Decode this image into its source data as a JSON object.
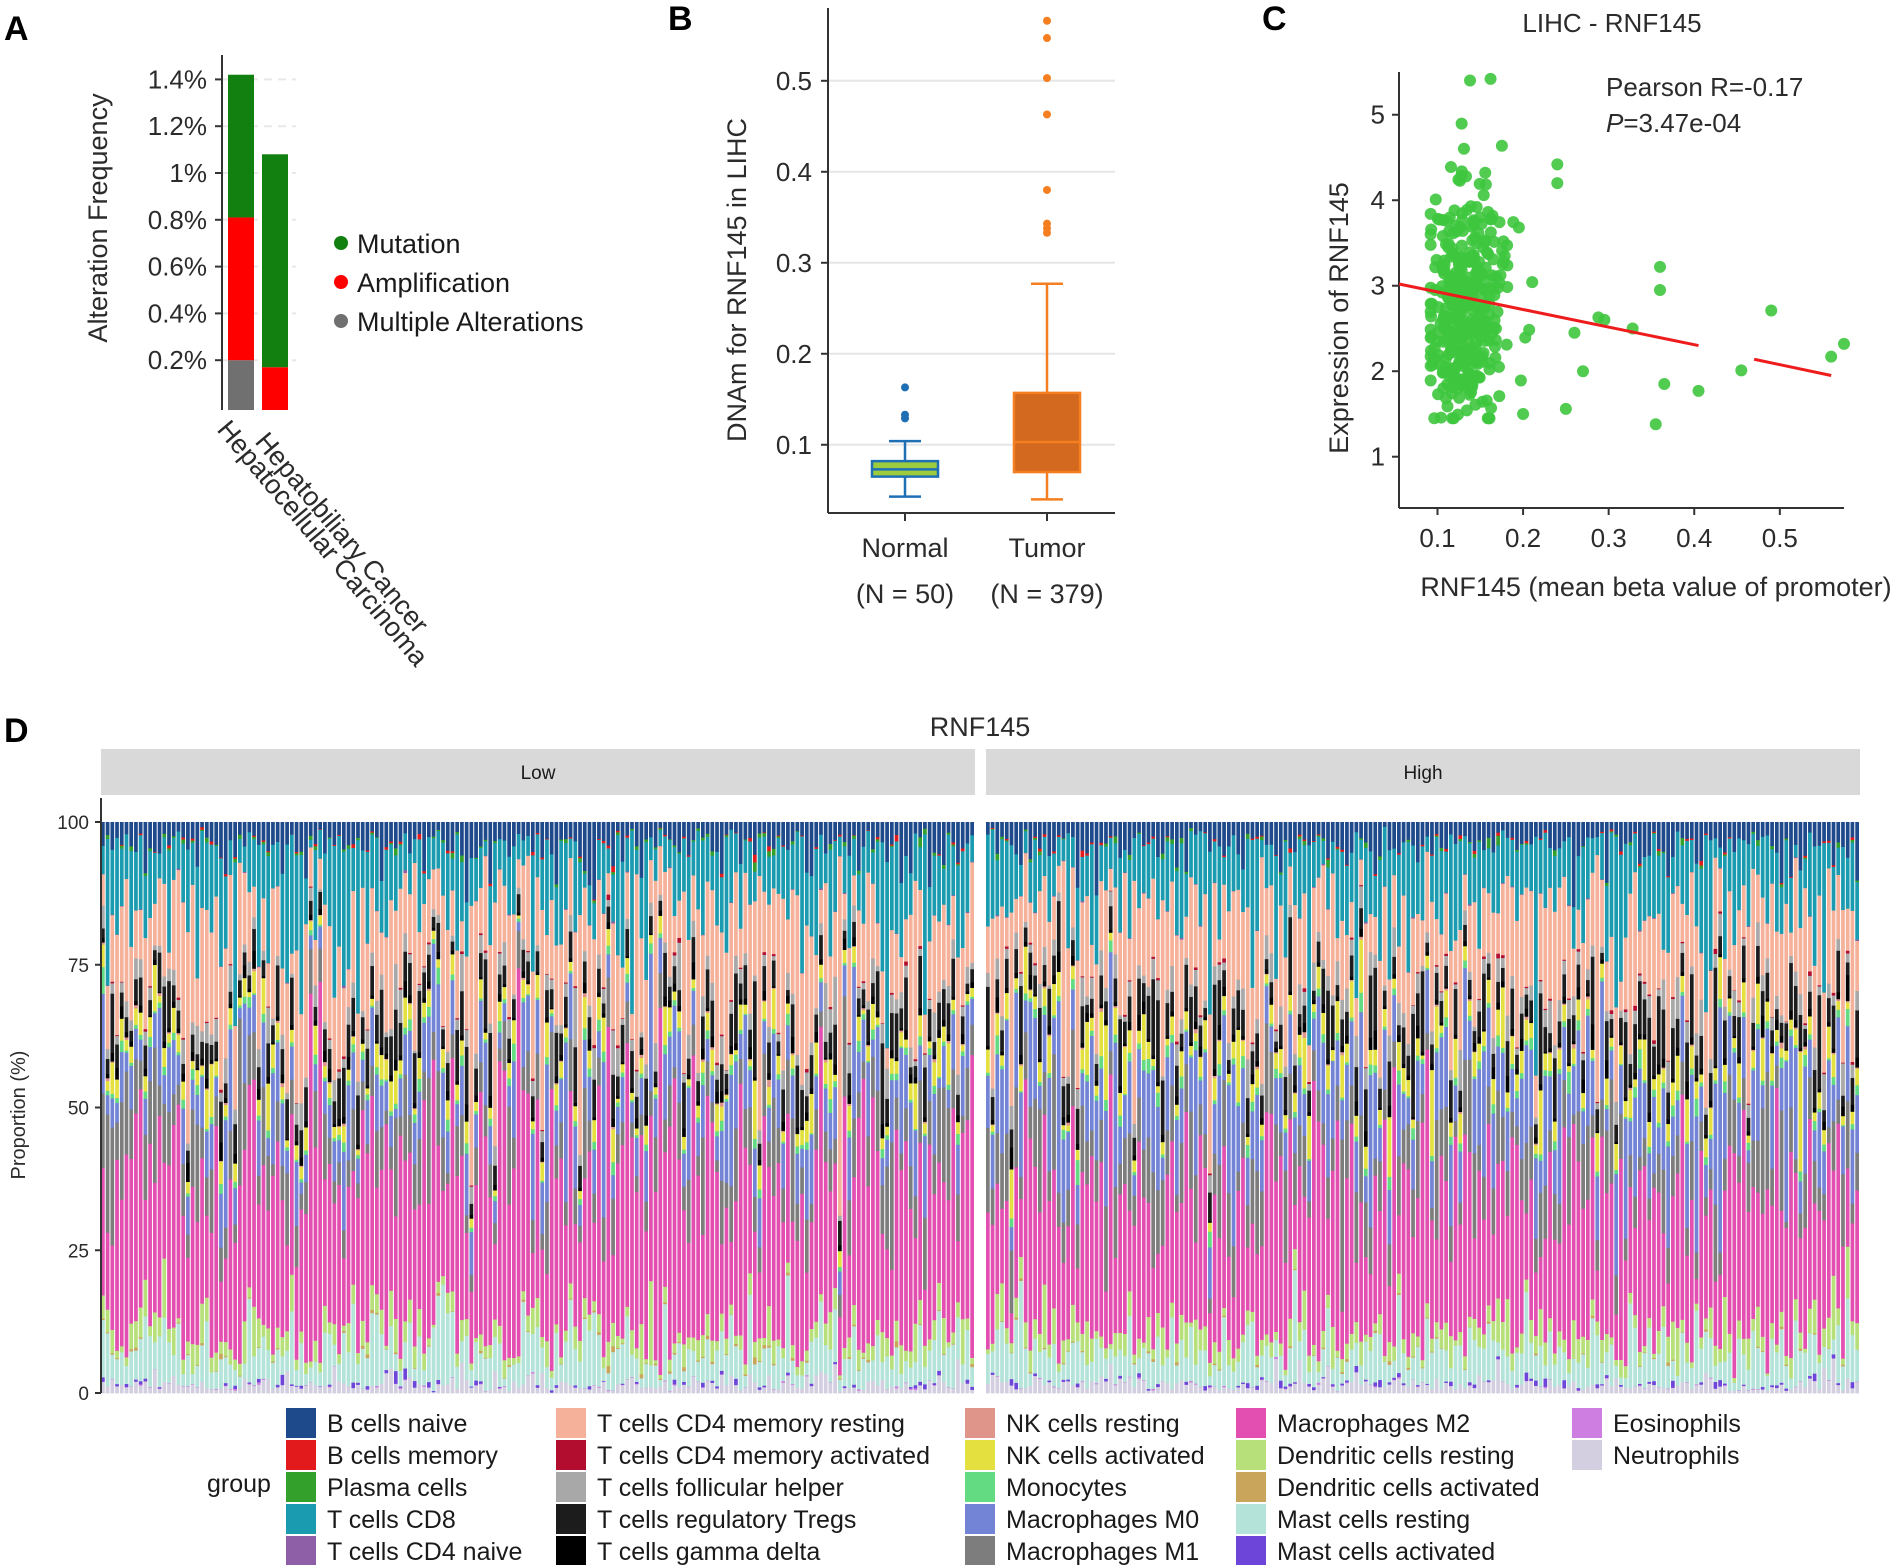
{
  "panels": {
    "a": "A",
    "b": "B",
    "c": "C",
    "d": "D"
  },
  "chart_data": [
    {
      "id": "A",
      "type": "bar",
      "stacked": true,
      "ylabel": "Alteration Frequency",
      "ylim": [
        0,
        1.5
      ],
      "ytick_values": [
        0.2,
        0.4,
        0.6,
        0.8,
        1.0,
        1.2,
        1.4
      ],
      "ytick_labels": [
        "0.2%",
        "0.4%",
        "0.6%",
        "0.8%",
        "1%",
        "1.2%",
        "1.4%"
      ],
      "categories": [
        "Hepatocellular Carcinoma",
        "Hepatobiliary Cancer"
      ],
      "series": [
        {
          "name": "Multiple Alterations",
          "color": "#707070",
          "values": [
            0.2,
            0.0
          ]
        },
        {
          "name": "Amplification",
          "color": "#ff0000",
          "values": [
            0.61,
            0.17
          ]
        },
        {
          "name": "Mutation",
          "color": "#118011",
          "values": [
            0.61,
            0.91
          ]
        }
      ],
      "legend": [
        "Mutation",
        "Amplification",
        "Multiple Alterations"
      ],
      "legend_colors": [
        "#118011",
        "#ff0000",
        "#707070"
      ]
    },
    {
      "id": "B",
      "type": "box",
      "ylabel": "DNAm for RNF145 in LIHC",
      "ylim": [
        0.025,
        0.58
      ],
      "yticks": [
        0.1,
        0.2,
        0.3,
        0.4,
        0.5
      ],
      "groups": [
        {
          "label": "Normal",
          "n_label": "(N = 50)",
          "box_fill": "#9ccc3d",
          "stroke": "#1f6fb5",
          "whisker_low": 0.043,
          "q1": 0.065,
          "median": 0.073,
          "q3": 0.082,
          "whisker_high": 0.104,
          "outliers": [
            0.129,
            0.133,
            0.163
          ]
        },
        {
          "label": "Tumor",
          "n_label": "(N = 379)",
          "box_fill": "#d2691e",
          "stroke": "#f57f20",
          "whisker_low": 0.04,
          "q1": 0.07,
          "median": 0.103,
          "q3": 0.157,
          "whisker_high": 0.277,
          "outliers": [
            0.333,
            0.338,
            0.343,
            0.38,
            0.463,
            0.503,
            0.547,
            0.566
          ]
        }
      ]
    },
    {
      "id": "C",
      "type": "scatter",
      "title": "LIHC - RNF145",
      "xlabel": "RNF145 (mean beta value of promoter)",
      "ylabel": "Expression of RNF145",
      "xlim": [
        0.055,
        0.575
      ],
      "ylim": [
        0.4,
        5.5
      ],
      "xticks": [
        0.1,
        0.2,
        0.3,
        0.4,
        0.5
      ],
      "yticks": [
        1,
        2,
        3,
        4,
        5
      ],
      "point_color": "#3ec63e",
      "fit_color": "#ee1c1c",
      "n_points": 371,
      "center": {
        "x": 0.12,
        "y": 2.75
      },
      "annotation_r": "Pearson R=-0.17",
      "annotation_p_symbol": "P",
      "annotation_p_value": "=3.47e-04",
      "fit_segments": [
        [
          0.055,
          3.02,
          0.405,
          2.3
        ],
        [
          0.47,
          2.14,
          0.56,
          1.95
        ]
      ],
      "notable_points": [
        [
          0.138,
          5.4
        ],
        [
          0.162,
          5.42
        ],
        [
          0.24,
          4.42
        ],
        [
          0.24,
          4.2
        ],
        [
          0.288,
          2.63
        ],
        [
          0.295,
          2.6
        ],
        [
          0.328,
          2.5
        ],
        [
          0.36,
          3.22
        ],
        [
          0.36,
          2.95
        ],
        [
          0.355,
          1.38
        ],
        [
          0.365,
          1.85
        ],
        [
          0.405,
          1.77
        ],
        [
          0.455,
          2.01
        ],
        [
          0.49,
          2.71
        ],
        [
          0.56,
          2.17
        ],
        [
          0.575,
          2.32
        ],
        [
          0.26,
          2.45
        ],
        [
          0.27,
          2.0
        ],
        [
          0.25,
          1.56
        ],
        [
          0.2,
          1.5
        ]
      ]
    },
    {
      "id": "D",
      "type": "bar",
      "stacked": true,
      "title": "RNF145",
      "ylabel": "Proportion (%)",
      "ylim": [
        0,
        100
      ],
      "yticks": [
        0,
        25,
        50,
        75,
        100
      ],
      "facets": [
        "Low",
        "High"
      ],
      "samples_per_facet": 185,
      "legend_title": "group",
      "cell_types": [
        {
          "name": "B cells naive",
          "color": "#1e4a8c",
          "mean": 4.0
        },
        {
          "name": "B cells memory",
          "color": "#e31a1c",
          "mean": 0.3
        },
        {
          "name": "Plasma cells",
          "color": "#33a02c",
          "mean": 0.5
        },
        {
          "name": "T cells CD8",
          "color": "#1a9bb0",
          "mean": 11.0
        },
        {
          "name": "T cells CD4 naive",
          "color": "#8e5fa6",
          "mean": 0.1
        },
        {
          "name": "T cells CD4 memory resting",
          "color": "#f5b19a",
          "mean": 14.0
        },
        {
          "name": "T cells CD4 memory activated",
          "color": "#b20d2e",
          "mean": 0.3
        },
        {
          "name": "T cells follicular helper",
          "color": "#a8a8a8",
          "mean": 2.5
        },
        {
          "name": "T cells regulatory Tregs",
          "color": "#1c1c1c",
          "mean": 5.0
        },
        {
          "name": "T cells gamma delta",
          "color": "#000000",
          "mean": 1.0
        },
        {
          "name": "NK cells resting",
          "color": "#e0958b",
          "mean": 0.3
        },
        {
          "name": "NK cells activated",
          "color": "#e4e040",
          "mean": 3.0
        },
        {
          "name": "Monocytes",
          "color": "#62db82",
          "mean": 1.0
        },
        {
          "name": "Macrophages M0",
          "color": "#7383d6",
          "mean": 9.0
        },
        {
          "name": "Macrophages M1",
          "color": "#7d7d7d",
          "mean": 8.0
        },
        {
          "name": "Macrophages M2",
          "color": "#e34fb0",
          "mean": 26.0
        },
        {
          "name": "Dendritic cells resting",
          "color": "#b7e07a",
          "mean": 3.0
        },
        {
          "name": "Dendritic cells activated",
          "color": "#c9a45b",
          "mean": 0.3
        },
        {
          "name": "Mast cells resting",
          "color": "#b3e3d9",
          "mean": 6.0
        },
        {
          "name": "Mast cells activated",
          "color": "#6d45d9",
          "mean": 0.5
        },
        {
          "name": "Eosinophils",
          "color": "#cd7ee0",
          "mean": 0.1
        },
        {
          "name": "Neutrophils",
          "color": "#d3cfe0",
          "mean": 1.5
        }
      ]
    }
  ]
}
